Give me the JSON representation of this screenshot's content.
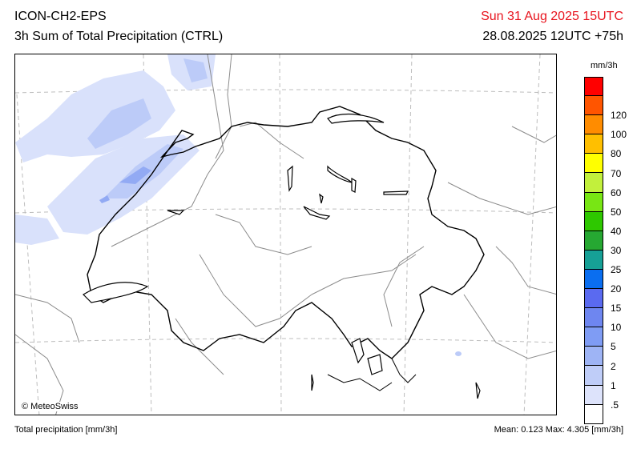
{
  "header": {
    "model": "ICON-CH2-EPS",
    "product": "3h Sum of Total Precipitation (CTRL)",
    "valid_time": "Sun 31 Aug 2025 15UTC",
    "run": "28.08.2025 12UTC +75h"
  },
  "map": {
    "copyright": "© MeteoSwiss"
  },
  "legend": {
    "unit": "mm/3h",
    "levels": [
      {
        "label": "",
        "color": "#ff0000"
      },
      {
        "label": "120",
        "color": "#ff5500"
      },
      {
        "label": "100",
        "color": "#ff8c00"
      },
      {
        "label": "80",
        "color": "#ffbf00"
      },
      {
        "label": "70",
        "color": "#ffff00"
      },
      {
        "label": "60",
        "color": "#c2f03c"
      },
      {
        "label": "50",
        "color": "#78e614"
      },
      {
        "label": "40",
        "color": "#2ec800"
      },
      {
        "label": "30",
        "color": "#26a832"
      },
      {
        "label": "25",
        "color": "#16a096"
      },
      {
        "label": "20",
        "color": "#0a6ef0"
      },
      {
        "label": "15",
        "color": "#5a6af0"
      },
      {
        "label": "10",
        "color": "#6e86f0"
      },
      {
        "label": "5",
        "color": "#7f9cf4"
      },
      {
        "label": "2",
        "color": "#9eb4f5"
      },
      {
        "label": "1",
        "color": "#bfcdf8"
      },
      {
        "label": ".5",
        "color": "#dde3fb"
      },
      {
        "label": "",
        "color": "#ffffff"
      }
    ]
  },
  "footer": {
    "variable": "Total precipitation [mm/3h]",
    "stats": "Mean:   0.123 Max:   4.305 [mm/3h]"
  }
}
